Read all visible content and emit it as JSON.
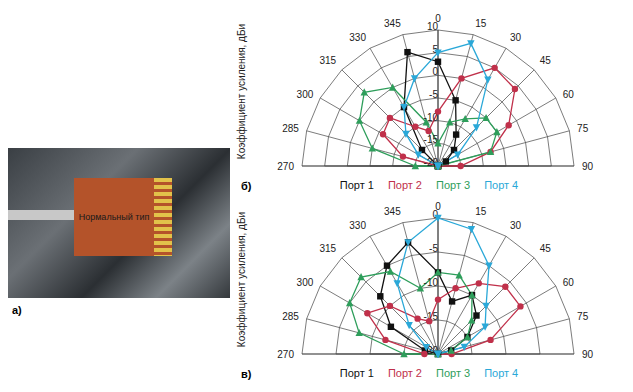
{
  "photo": {
    "label": "а)",
    "text": "Нормальный тип"
  },
  "chart_data": [
    {
      "type": "radar",
      "label": "б)",
      "ylabel": "Коэффициент усиления, дБи",
      "categories": [
        270,
        285,
        300,
        315,
        330,
        345,
        0,
        15,
        30,
        45,
        60,
        75,
        90
      ],
      "ylim": [
        -20,
        10
      ],
      "yticks": [
        -20,
        -15,
        -10,
        -5,
        0,
        5,
        10
      ],
      "grid": true,
      "legend": "bottom",
      "series": [
        {
          "name": "Порт 1",
          "color": "#111111",
          "marker": "square",
          "values": [
            -20,
            -20,
            -20,
            -15,
            -5,
            6,
            3,
            -5,
            -12,
            -15,
            -18,
            -20,
            -20
          ]
        },
        {
          "name": "Порт 2",
          "color": "#c0304a",
          "marker": "circle",
          "values": [
            -20,
            -12,
            -6,
            -5,
            -10,
            -12,
            -8,
            0,
            5,
            4,
            -2,
            -8,
            -15
          ]
        },
        {
          "name": "Порт 3",
          "color": "#2e9e5b",
          "marker": "triangle",
          "values": [
            -15,
            -5,
            0,
            3,
            0,
            -10,
            -15,
            -10,
            -8,
            -5,
            -5,
            -8,
            -20
          ]
        },
        {
          "name": "Порт 4",
          "color": "#2aa8d8",
          "marker": "triangle-down",
          "values": [
            -20,
            -20,
            -15,
            -10,
            -5,
            0,
            5,
            8,
            2,
            -8,
            -15,
            -20,
            -20
          ]
        }
      ]
    },
    {
      "type": "radar",
      "label": "в)",
      "ylabel": "Коэффициент усиления, дБи",
      "categories": [
        270,
        285,
        300,
        315,
        330,
        345,
        0,
        15,
        30,
        45,
        60,
        75,
        90
      ],
      "ylim": [
        -20,
        0
      ],
      "yticks": [
        -20,
        -15,
        -10,
        -5,
        0
      ],
      "grid": true,
      "legend": "bottom",
      "series": [
        {
          "name": "Порт 1",
          "color": "#111111",
          "marker": "square",
          "values": [
            -20,
            -18,
            -12,
            -8,
            -5,
            -3,
            -8,
            -12,
            -10,
            -12,
            -15,
            -18,
            -20
          ]
        },
        {
          "name": "Порт 2",
          "color": "#c0304a",
          "marker": "circle",
          "values": [
            -18,
            -12,
            -8,
            -10,
            -14,
            -15,
            -12,
            -10,
            -8,
            -6,
            -6,
            -12,
            -18
          ]
        },
        {
          "name": "Порт 3",
          "color": "#2e9e5b",
          "marker": "triangle",
          "values": [
            -15,
            -8,
            -5,
            -4,
            -6,
            -10,
            -8,
            -8,
            -10,
            -13,
            -15,
            -18,
            -20
          ]
        },
        {
          "name": "Порт 4",
          "color": "#2aa8d8",
          "marker": "triangle-down",
          "values": [
            -20,
            -20,
            -18,
            -14,
            -8,
            -3,
            0,
            -1,
            -5,
            -10,
            -12,
            -16,
            -20
          ]
        }
      ]
    }
  ]
}
